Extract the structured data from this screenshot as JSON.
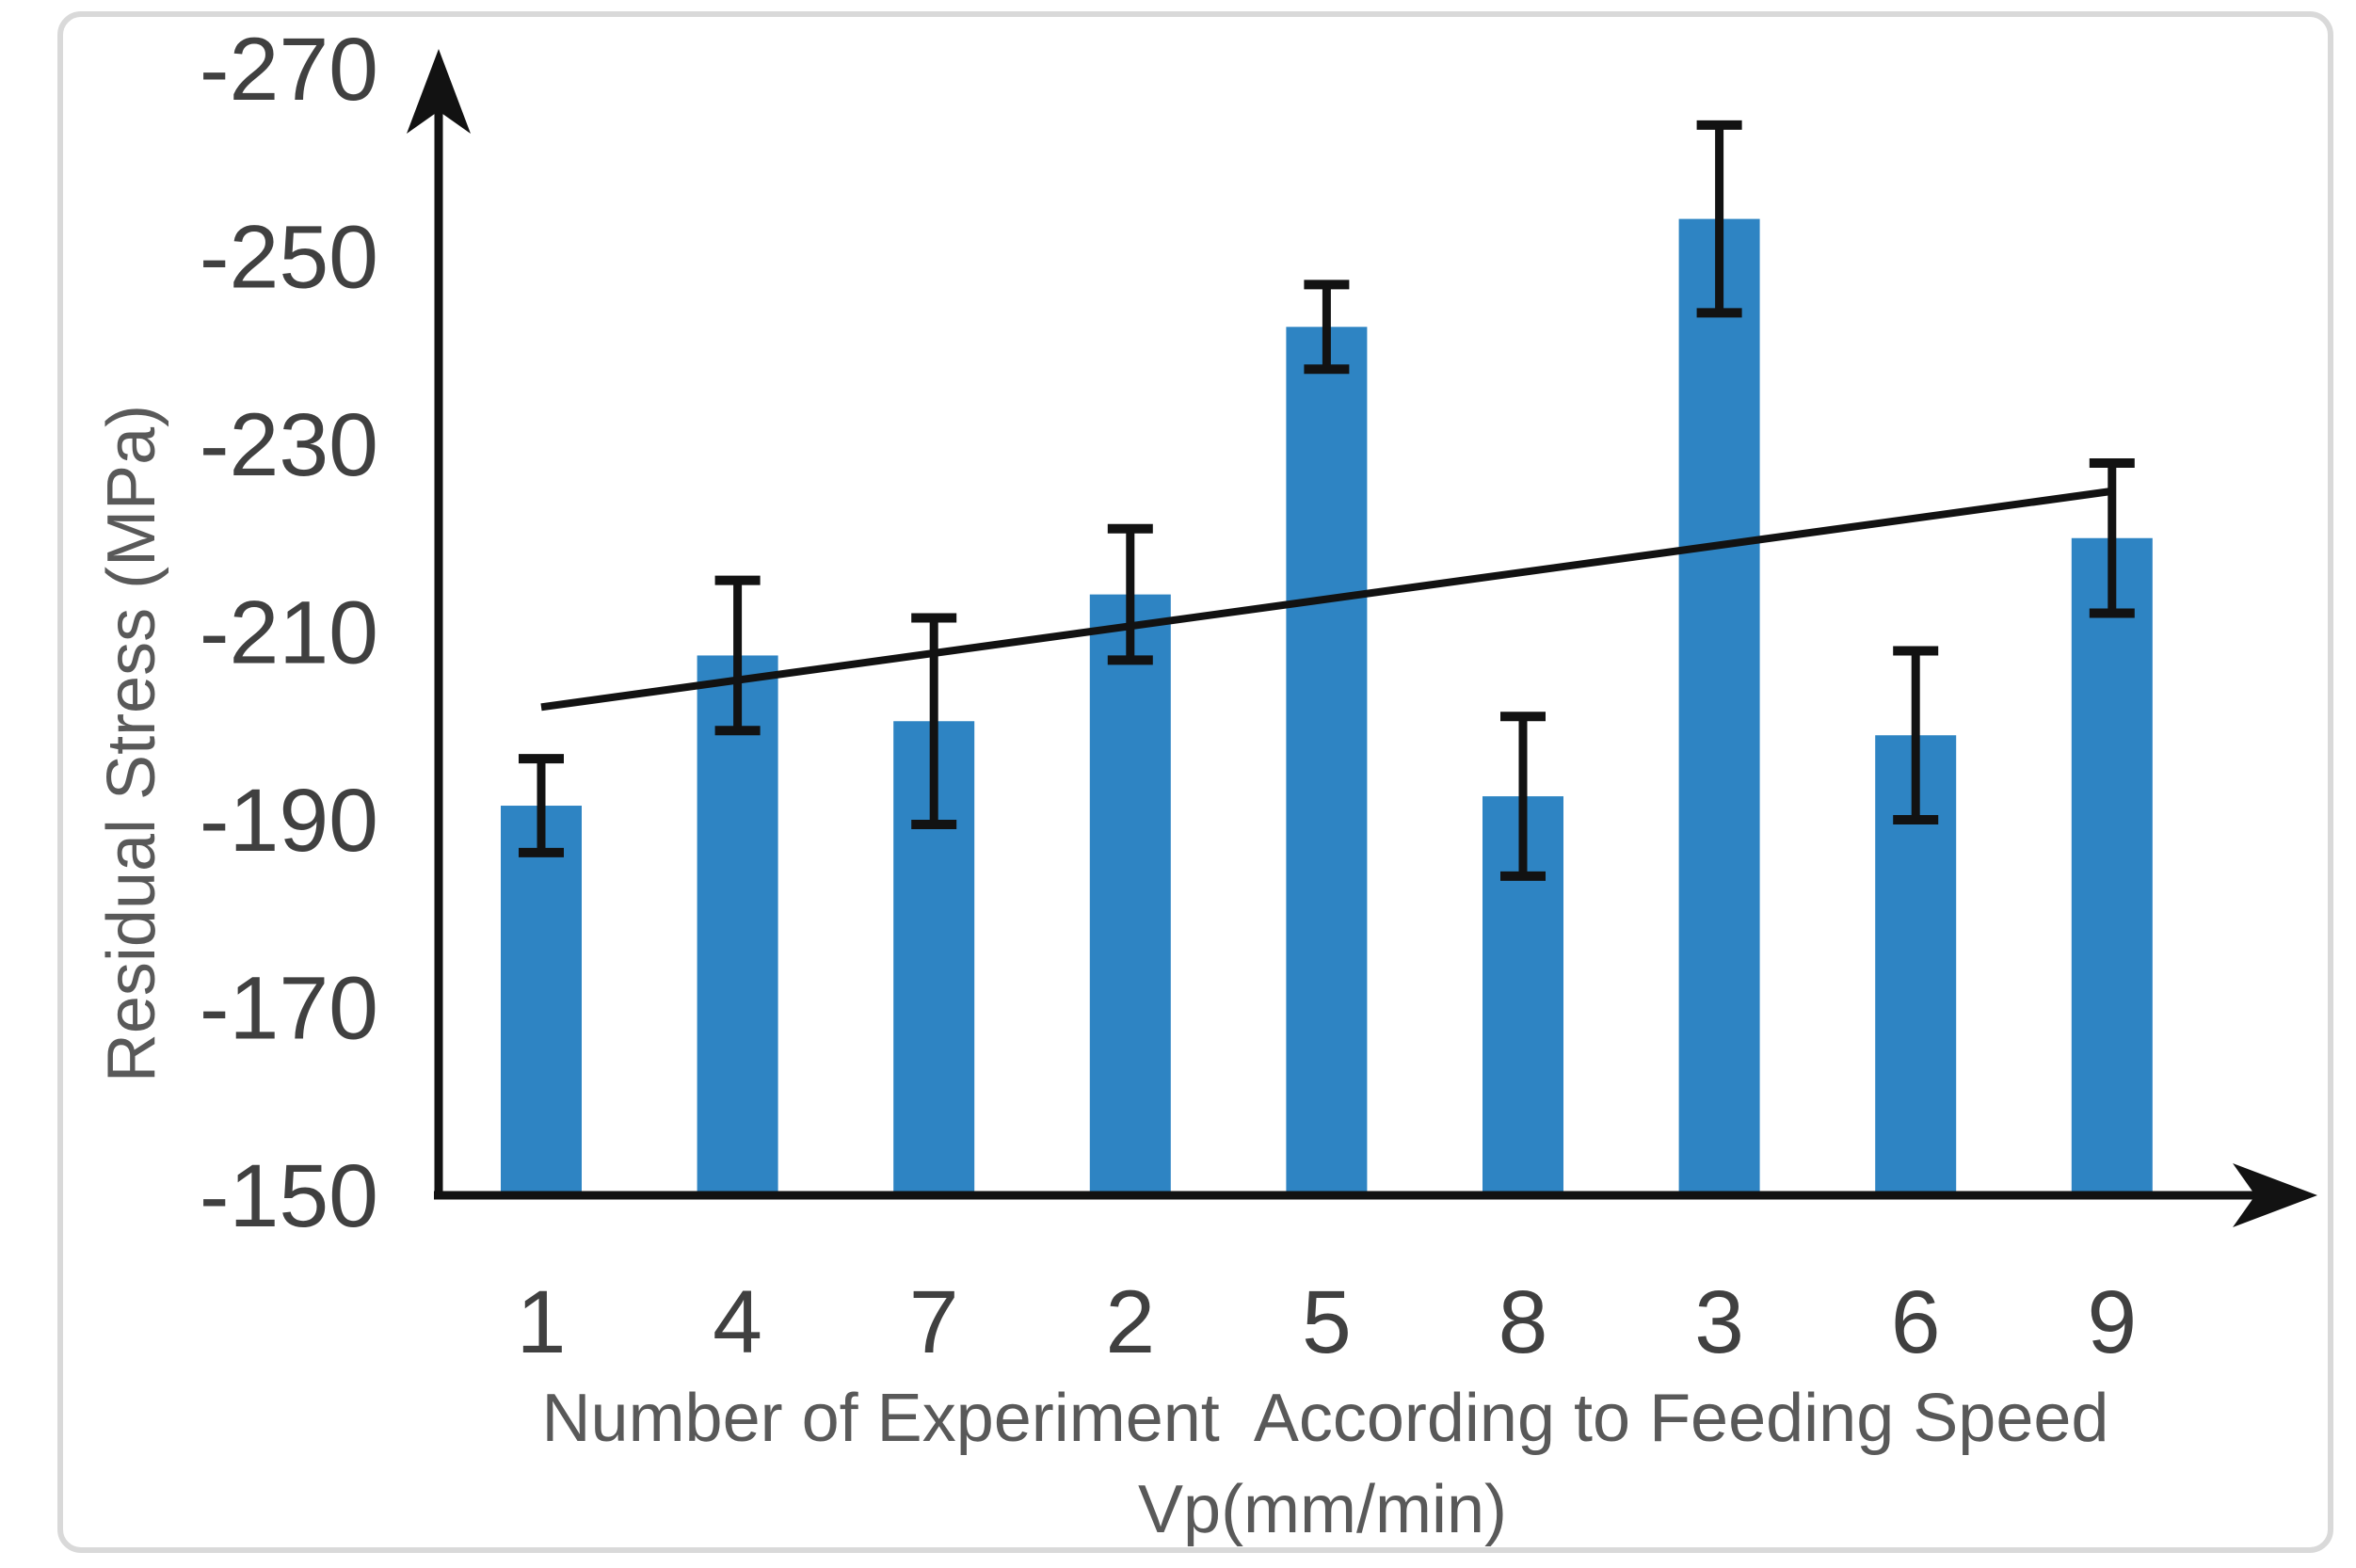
{
  "chart_data": {
    "type": "bar",
    "ylabel": "Residual Stress (MPa)",
    "xlabel_line1": "Number of Experiment  According to Feeding Speed",
    "xlabel_line2": "Vp(mm/min)",
    "categories": [
      "1",
      "4",
      "7",
      "2",
      "5",
      "8",
      "3",
      "6",
      "9"
    ],
    "values": [
      -191.5,
      -207.5,
      -200.5,
      -214,
      -242.5,
      -192.5,
      -254,
      -199,
      -220
    ],
    "errors": [
      5,
      8,
      11,
      7,
      4.5,
      8.5,
      10,
      9,
      8
    ],
    "trend_line": {
      "start_value": -202,
      "end_value": -225
    },
    "y_ticks": [
      -270,
      -250,
      -230,
      -210,
      -190,
      -170,
      -150
    ],
    "ylim_axis": [
      -150,
      -270
    ],
    "grid": false,
    "legend": false,
    "colors": {
      "bar": "#2e84c3",
      "axis": "#121212",
      "line": "#121212",
      "tick_label": "#404040",
      "title": "#595959",
      "frame": "#d9d9d9"
    }
  }
}
